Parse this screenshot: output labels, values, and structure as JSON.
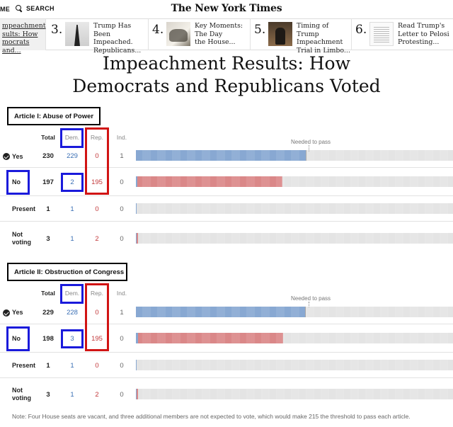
{
  "topbar": {
    "menu_label": "ME",
    "search_label": "SEARCH",
    "logo_text": "The New York Times"
  },
  "stories": [
    {
      "number": "",
      "title_lines": [
        "mpeachment",
        "sults: How",
        "mocrats and..."
      ],
      "current": true
    },
    {
      "number": "3.",
      "title_lines": [
        "Trump Has",
        "Been Impeached.",
        "Republicans..."
      ],
      "current": false
    },
    {
      "number": "4.",
      "title_lines": [
        "Key Moments:",
        "The Day",
        "the House..."
      ],
      "current": false
    },
    {
      "number": "5.",
      "title_lines": [
        "Timing of Trump",
        "Impeachment",
        "Trial in Limbo..."
      ],
      "current": false
    },
    {
      "number": "6.",
      "title_lines": [
        "Read Trump's",
        "Letter to Pelosi",
        "Protesting..."
      ],
      "current": false
    }
  ],
  "headline_lines": [
    "Impeachment Results: How",
    "Democrats and Republicans Voted"
  ],
  "columns": {
    "total": "Total",
    "dem": "Dem.",
    "rep": "Rep.",
    "ind": "Ind."
  },
  "needed_label": "Needed to pass",
  "threshold": 215,
  "colors": {
    "dem": "#3a6fb5",
    "rep": "#c2393b",
    "empty": "#d3d3d3",
    "ind": "#6b6b6b",
    "annotation_blue": "#1a1adb",
    "annotation_red": "#d11414"
  },
  "articles": [
    {
      "label": "Article I: Abuse of Power",
      "rows": [
        {
          "label_lines": [
            "Yes"
          ],
          "passed": true,
          "total": 230,
          "dem": 229,
          "rep": 0,
          "ind": 1
        },
        {
          "label_lines": [
            "No"
          ],
          "passed": false,
          "total": 197,
          "dem": 2,
          "rep": 195,
          "ind": 0
        },
        {
          "label_lines": [
            "Present"
          ],
          "passed": false,
          "total": 1,
          "dem": 1,
          "rep": 0,
          "ind": 0
        },
        {
          "label_lines": [
            "Not",
            "voting"
          ],
          "passed": false,
          "total": 3,
          "dem": 1,
          "rep": 2,
          "ind": 0
        }
      ]
    },
    {
      "label": "Article II: Obstruction of Congress",
      "rows": [
        {
          "label_lines": [
            "Yes"
          ],
          "passed": true,
          "total": 229,
          "dem": 228,
          "rep": 0,
          "ind": 1
        },
        {
          "label_lines": [
            "No"
          ],
          "passed": false,
          "total": 198,
          "dem": 3,
          "rep": 195,
          "ind": 0
        },
        {
          "label_lines": [
            "Present"
          ],
          "passed": false,
          "total": 1,
          "dem": 1,
          "rep": 0,
          "ind": 0
        },
        {
          "label_lines": [
            "Not",
            "voting"
          ],
          "passed": false,
          "total": 3,
          "dem": 1,
          "rep": 2,
          "ind": 0
        }
      ]
    }
  ],
  "note": "Note: Four House seats are vacant, and three additional members are not expected to vote, which would make 215 the threshold to pass each article."
}
